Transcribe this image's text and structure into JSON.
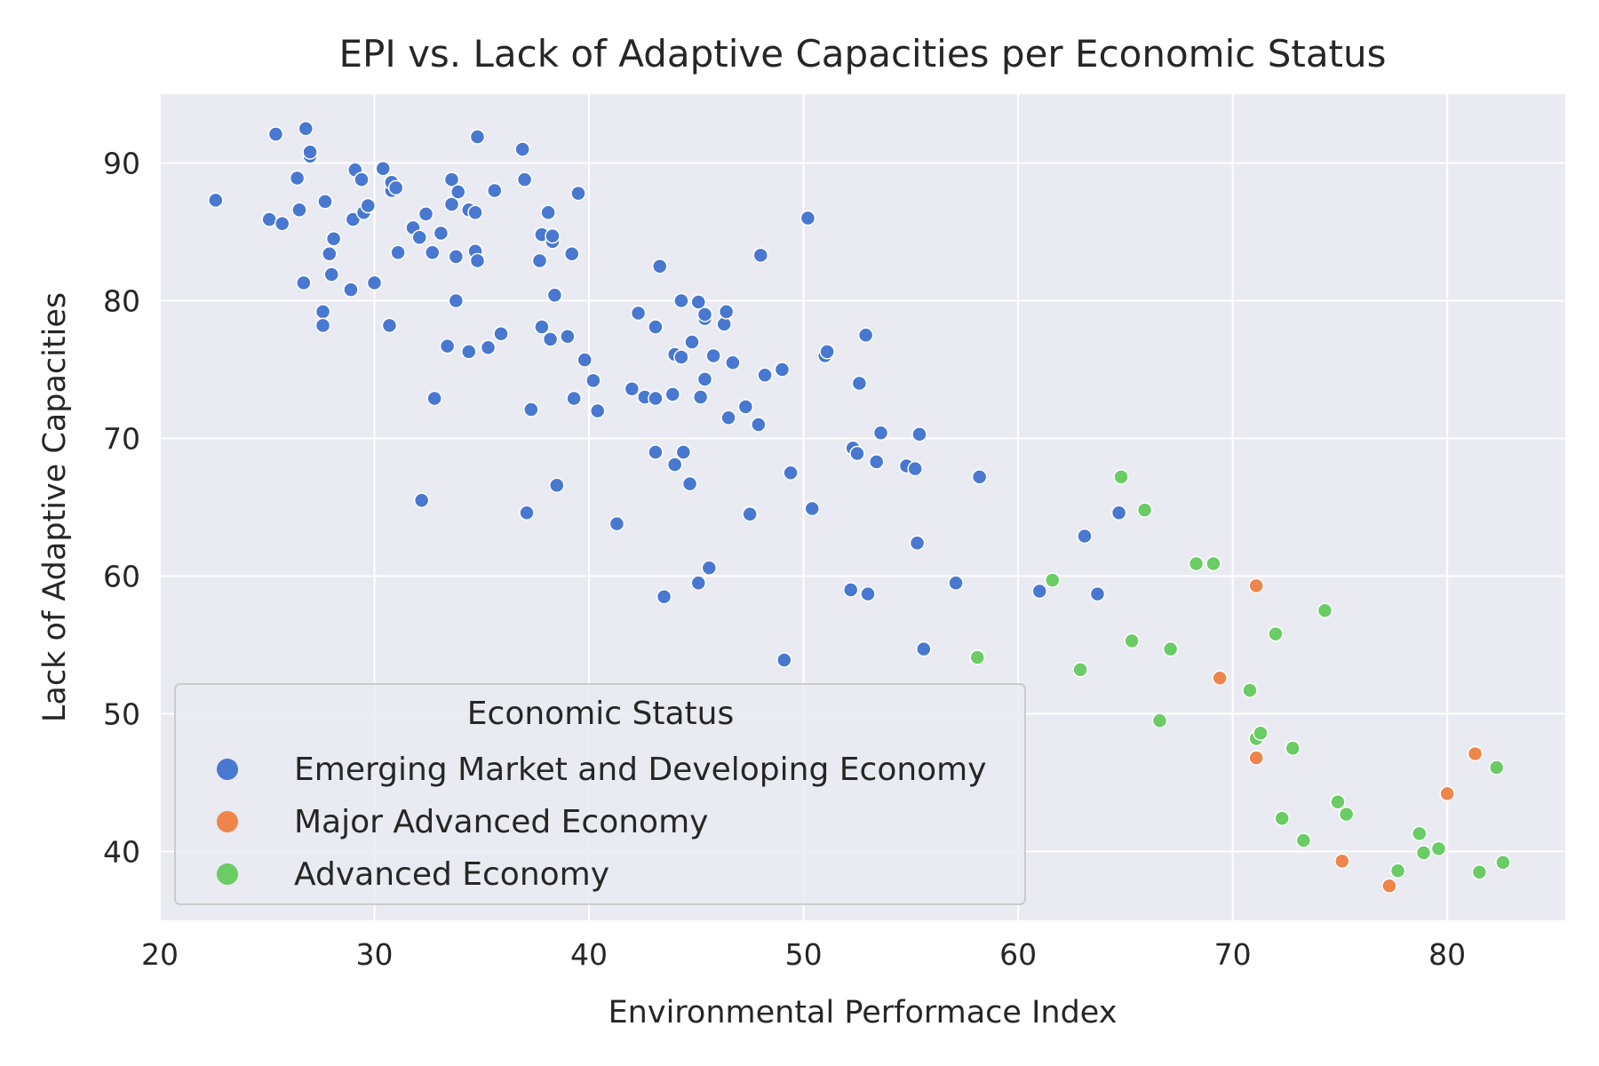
{
  "chart_data": {
    "type": "scatter",
    "title": "EPI vs. Lack of Adaptive Capacities per Economic Status",
    "xlabel": "Environmental Performace Index",
    "ylabel": "Lack of Adaptive Capacities",
    "xlim": [
      20,
      85.5
    ],
    "ylim": [
      35,
      95
    ],
    "xticks": [
      20,
      30,
      40,
      50,
      60,
      70,
      80
    ],
    "yticks": [
      40,
      50,
      60,
      70,
      80,
      90
    ],
    "grid": true,
    "legend": {
      "title": "Economic Status",
      "placement": "lower-left"
    },
    "colors": {
      "background": "#eaeaf2",
      "grid": "#ffffff",
      "marker_edge": "#ffffff"
    },
    "series": [
      {
        "name": "Emerging Market and Developing Economy",
        "color": "#4878d0",
        "points": [
          [
            22.6,
            87.3
          ],
          [
            25.1,
            85.9
          ],
          [
            25.4,
            92.1
          ],
          [
            25.7,
            85.6
          ],
          [
            26.4,
            88.9
          ],
          [
            26.5,
            86.6
          ],
          [
            26.7,
            81.3
          ],
          [
            26.8,
            92.5
          ],
          [
            27.0,
            90.5
          ],
          [
            27.0,
            90.8
          ],
          [
            27.6,
            79.2
          ],
          [
            27.6,
            78.2
          ],
          [
            27.7,
            87.2
          ],
          [
            27.9,
            83.4
          ],
          [
            28.0,
            81.9
          ],
          [
            28.1,
            84.5
          ],
          [
            28.9,
            80.8
          ],
          [
            29.0,
            85.9
          ],
          [
            29.1,
            89.5
          ],
          [
            29.4,
            88.8
          ],
          [
            29.5,
            86.4
          ],
          [
            29.7,
            86.9
          ],
          [
            30.0,
            81.3
          ],
          [
            30.4,
            89.6
          ],
          [
            30.7,
            78.2
          ],
          [
            30.8,
            88.0
          ],
          [
            30.8,
            88.6
          ],
          [
            31.0,
            88.2
          ],
          [
            31.1,
            83.5
          ],
          [
            31.8,
            85.3
          ],
          [
            32.1,
            84.6
          ],
          [
            32.2,
            65.5
          ],
          [
            32.4,
            86.3
          ],
          [
            32.7,
            83.5
          ],
          [
            32.8,
            72.9
          ],
          [
            33.1,
            84.9
          ],
          [
            33.4,
            76.7
          ],
          [
            33.6,
            87.0
          ],
          [
            33.6,
            88.8
          ],
          [
            33.8,
            80.0
          ],
          [
            33.8,
            83.2
          ],
          [
            33.9,
            87.9
          ],
          [
            34.4,
            86.6
          ],
          [
            34.4,
            76.3
          ],
          [
            34.7,
            86.4
          ],
          [
            34.7,
            83.6
          ],
          [
            34.8,
            82.9
          ],
          [
            34.8,
            91.9
          ],
          [
            35.3,
            76.6
          ],
          [
            35.6,
            88.0
          ],
          [
            35.9,
            77.6
          ],
          [
            36.9,
            91.0
          ],
          [
            37.0,
            88.8
          ],
          [
            37.1,
            64.6
          ],
          [
            37.3,
            72.1
          ],
          [
            37.7,
            82.9
          ],
          [
            37.8,
            84.8
          ],
          [
            37.8,
            78.1
          ],
          [
            38.1,
            86.4
          ],
          [
            38.2,
            77.2
          ],
          [
            38.3,
            84.3
          ],
          [
            38.3,
            84.7
          ],
          [
            38.4,
            80.4
          ],
          [
            38.5,
            66.6
          ],
          [
            39.0,
            77.4
          ],
          [
            39.2,
            83.4
          ],
          [
            39.3,
            72.9
          ],
          [
            39.5,
            87.8
          ],
          [
            39.8,
            75.7
          ],
          [
            40.2,
            74.2
          ],
          [
            40.4,
            72.0
          ],
          [
            41.3,
            63.8
          ],
          [
            42.0,
            73.6
          ],
          [
            42.3,
            79.1
          ],
          [
            42.6,
            73.0
          ],
          [
            43.1,
            72.9
          ],
          [
            43.1,
            69.0
          ],
          [
            43.1,
            78.1
          ],
          [
            43.3,
            82.5
          ],
          [
            43.5,
            58.5
          ],
          [
            43.9,
            73.2
          ],
          [
            44.0,
            76.1
          ],
          [
            44.0,
            68.1
          ],
          [
            44.3,
            80.0
          ],
          [
            44.3,
            75.9
          ],
          [
            44.4,
            69.0
          ],
          [
            44.7,
            66.7
          ],
          [
            44.8,
            77.0
          ],
          [
            45.1,
            79.9
          ],
          [
            45.1,
            59.5
          ],
          [
            45.2,
            73.0
          ],
          [
            45.4,
            74.3
          ],
          [
            45.4,
            78.7
          ],
          [
            45.4,
            79.0
          ],
          [
            45.6,
            60.6
          ],
          [
            45.8,
            76.0
          ],
          [
            46.3,
            78.3
          ],
          [
            46.4,
            79.2
          ],
          [
            46.5,
            71.5
          ],
          [
            46.7,
            75.5
          ],
          [
            47.3,
            72.3
          ],
          [
            47.5,
            64.5
          ],
          [
            47.9,
            71.0
          ],
          [
            48.0,
            83.3
          ],
          [
            48.2,
            74.6
          ],
          [
            49.0,
            75.0
          ],
          [
            49.1,
            53.9
          ],
          [
            49.4,
            67.5
          ],
          [
            50.2,
            86.0
          ],
          [
            50.4,
            64.9
          ],
          [
            51.0,
            76.0
          ],
          [
            51.1,
            76.3
          ],
          [
            52.2,
            59.0
          ],
          [
            52.3,
            69.3
          ],
          [
            52.5,
            68.9
          ],
          [
            52.6,
            74.0
          ],
          [
            52.9,
            77.5
          ],
          [
            53.0,
            58.7
          ],
          [
            53.4,
            68.3
          ],
          [
            53.6,
            70.4
          ],
          [
            54.8,
            68.0
          ],
          [
            55.2,
            67.8
          ],
          [
            55.3,
            62.4
          ],
          [
            55.4,
            70.3
          ],
          [
            55.6,
            54.7
          ],
          [
            57.1,
            59.5
          ],
          [
            58.2,
            67.2
          ],
          [
            61.0,
            58.9
          ],
          [
            63.1,
            62.9
          ],
          [
            63.7,
            58.7
          ],
          [
            64.7,
            64.6
          ]
        ]
      },
      {
        "name": "Major Advanced Economy",
        "color": "#ee854a",
        "points": [
          [
            71.1,
            59.3
          ],
          [
            69.4,
            52.6
          ],
          [
            71.1,
            46.8
          ],
          [
            75.1,
            39.3
          ],
          [
            77.3,
            37.5
          ],
          [
            80.0,
            44.2
          ],
          [
            81.3,
            47.1
          ]
        ]
      },
      {
        "name": "Advanced Economy",
        "color": "#6acc64",
        "points": [
          [
            58.1,
            54.1
          ],
          [
            61.6,
            59.7
          ],
          [
            62.9,
            53.2
          ],
          [
            64.8,
            67.2
          ],
          [
            65.3,
            55.3
          ],
          [
            65.9,
            64.8
          ],
          [
            66.6,
            49.5
          ],
          [
            67.1,
            54.7
          ],
          [
            68.3,
            60.9
          ],
          [
            69.1,
            60.9
          ],
          [
            70.8,
            51.7
          ],
          [
            71.1,
            48.2
          ],
          [
            71.3,
            48.6
          ],
          [
            72.0,
            55.8
          ],
          [
            72.3,
            42.4
          ],
          [
            72.8,
            47.5
          ],
          [
            73.3,
            40.8
          ],
          [
            74.3,
            57.5
          ],
          [
            74.9,
            43.6
          ],
          [
            75.3,
            42.7
          ],
          [
            77.7,
            38.6
          ],
          [
            78.7,
            41.3
          ],
          [
            78.9,
            39.9
          ],
          [
            79.6,
            40.2
          ],
          [
            81.5,
            38.5
          ],
          [
            82.3,
            46.1
          ],
          [
            82.6,
            39.2
          ]
        ]
      }
    ]
  }
}
